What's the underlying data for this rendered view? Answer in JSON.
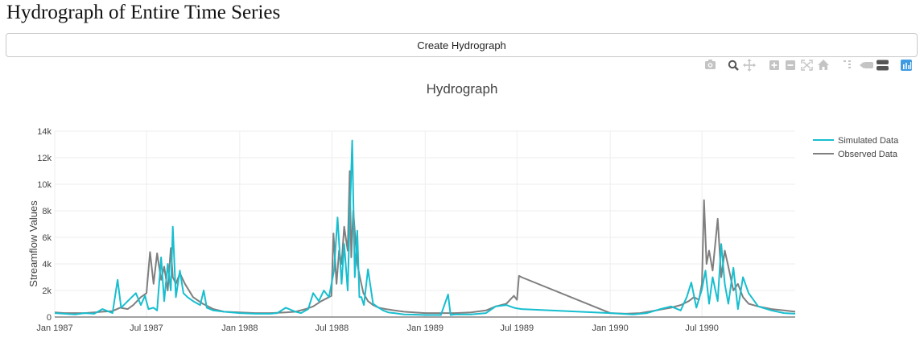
{
  "page": {
    "title": "Hydrograph of Entire Time Series",
    "create_button_label": "Create Hydrograph"
  },
  "modebar": {
    "icons": [
      "camera-icon",
      "zoom-icon",
      "pan-icon",
      "zoom-in-icon",
      "zoom-out-icon",
      "autoscale-icon",
      "reset-axes-icon",
      "spike-lines-icon",
      "hover-closest-icon",
      "hover-compare-icon",
      "plotly-logo-icon"
    ]
  },
  "colors": {
    "simulated": "#17becf",
    "observed": "#7f7f7f",
    "grid": "#eeeeee",
    "modebar_icon": "#c4c4c4",
    "plotly_logo": "#3f9be2"
  },
  "chart_data": {
    "type": "line",
    "title": "Hydrograph",
    "xlabel": "",
    "ylabel": "Streamflow Values",
    "x_range": [
      "1987-01-01",
      "1991-01-01"
    ],
    "ylim": [
      0,
      14000
    ],
    "y_ticks": [
      0,
      2000,
      4000,
      6000,
      8000,
      10000,
      12000,
      14000
    ],
    "y_tick_labels": [
      "0",
      "2k",
      "4k",
      "6k",
      "8k",
      "10k",
      "12k",
      "14k"
    ],
    "x_ticks": [
      "1987-01-01",
      "1987-07-01",
      "1988-01-01",
      "1988-07-01",
      "1989-01-01",
      "1989-07-01",
      "1990-01-01",
      "1990-07-01"
    ],
    "x_tick_labels": [
      "Jan 1987",
      "Jul 1987",
      "Jan 1988",
      "Jul 1988",
      "Jan 1989",
      "Jul 1989",
      "Jan 1990",
      "Jul 1990"
    ],
    "grid": true,
    "legend_position": "top-right",
    "series": [
      {
        "name": "Simulated Data",
        "x": [
          "1987-01-01",
          "1987-01-20",
          "1987-02-10",
          "1987-03-01",
          "1987-03-20",
          "1987-04-05",
          "1987-04-25",
          "1987-05-05",
          "1987-05-12",
          "1987-05-25",
          "1987-06-10",
          "1987-06-20",
          "1987-06-28",
          "1987-07-05",
          "1987-07-15",
          "1987-07-22",
          "1987-07-30",
          "1987-08-05",
          "1987-08-12",
          "1987-08-18",
          "1987-08-22",
          "1987-08-28",
          "1987-09-05",
          "1987-09-12",
          "1987-09-20",
          "1987-10-01",
          "1987-10-15",
          "1987-10-22",
          "1987-10-28",
          "1987-11-10",
          "1987-12-01",
          "1988-01-01",
          "1988-02-01",
          "1988-03-01",
          "1988-03-15",
          "1988-04-01",
          "1988-04-20",
          "1988-05-01",
          "1988-05-15",
          "1988-05-25",
          "1988-06-05",
          "1988-06-15",
          "1988-06-25",
          "1988-07-05",
          "1988-07-12",
          "1988-07-20",
          "1988-07-25",
          "1988-08-01",
          "1988-08-05",
          "1988-08-10",
          "1988-08-15",
          "1988-08-20",
          "1988-08-24",
          "1988-08-28",
          "1988-09-02",
          "1988-09-10",
          "1988-09-20",
          "1988-10-01",
          "1988-10-10",
          "1988-10-20",
          "1988-11-01",
          "1988-11-20",
          "1988-12-10",
          "1989-01-01",
          "1989-02-01",
          "1989-02-15",
          "1989-02-20",
          "1989-03-01",
          "1989-04-01",
          "1989-05-01",
          "1989-05-20",
          "1989-06-10",
          "1989-06-25",
          "1989-07-01",
          "1989-07-10",
          "1990-01-01",
          "1990-02-15",
          "1990-03-15",
          "1990-04-10",
          "1990-05-01",
          "1990-05-20",
          "1990-06-01",
          "1990-06-10",
          "1990-06-20",
          "1990-07-01",
          "1990-07-08",
          "1990-07-15",
          "1990-07-22",
          "1990-08-01",
          "1990-08-08",
          "1990-08-15",
          "1990-08-22",
          "1990-09-01",
          "1990-09-10",
          "1990-09-20",
          "1990-10-01",
          "1990-10-20",
          "1990-11-15",
          "1990-12-10",
          "1991-01-01"
        ],
        "values": [
          300,
          250,
          200,
          300,
          250,
          600,
          300,
          2800,
          700,
          1200,
          1800,
          900,
          1600,
          600,
          700,
          500,
          4500,
          1200,
          4000,
          2000,
          6800,
          1500,
          3500,
          1800,
          1500,
          1200,
          900,
          2000,
          700,
          500,
          400,
          300,
          250,
          250,
          300,
          700,
          400,
          300,
          600,
          1800,
          1200,
          2000,
          1500,
          3500,
          7500,
          2500,
          5500,
          2000,
          7300,
          13300,
          3000,
          6500,
          1500,
          1500,
          900,
          3600,
          1000,
          700,
          500,
          350,
          300,
          200,
          180,
          150,
          150,
          1700,
          150,
          200,
          200,
          300,
          800,
          900,
          700,
          650,
          600,
          300,
          200,
          300,
          600,
          800,
          500,
          1500,
          2600,
          700,
          2100,
          3500,
          1000,
          3000,
          1200,
          5500,
          2500,
          1000,
          3700,
          600,
          3000,
          1800,
          800,
          500,
          300,
          250
        ]
      },
      {
        "name": "Observed Data",
        "x": [
          "1987-01-01",
          "1987-01-20",
          "1987-02-10",
          "1987-03-01",
          "1987-03-20",
          "1987-04-05",
          "1987-04-25",
          "1987-05-10",
          "1987-05-25",
          "1987-06-05",
          "1987-06-20",
          "1987-07-01",
          "1987-07-08",
          "1987-07-15",
          "1987-07-22",
          "1987-07-30",
          "1987-08-05",
          "1987-08-12",
          "1987-08-18",
          "1987-08-22",
          "1987-08-28",
          "1987-09-05",
          "1987-09-15",
          "1987-10-01",
          "1987-10-20",
          "1987-11-10",
          "1987-12-01",
          "1988-01-01",
          "1988-02-01",
          "1988-03-01",
          "1988-04-01",
          "1988-04-20",
          "1988-05-10",
          "1988-05-25",
          "1988-06-10",
          "1988-06-25",
          "1988-06-30",
          "1988-07-04",
          "1988-07-10",
          "1988-07-15",
          "1988-07-20",
          "1988-07-25",
          "1988-08-01",
          "1988-08-05",
          "1988-08-08",
          "1988-08-12",
          "1988-08-16",
          "1988-08-20",
          "1988-08-25",
          "1988-09-01",
          "1988-09-10",
          "1988-09-20",
          "1988-10-01",
          "1988-10-15",
          "1988-11-01",
          "1988-11-20",
          "1988-12-10",
          "1989-01-01",
          "1989-02-01",
          "1989-03-01",
          "1989-04-01",
          "1989-05-01",
          "1989-05-20",
          "1989-06-10",
          "1989-06-25",
          "1989-07-01",
          "1989-07-05",
          "1989-07-10",
          "1990-01-01",
          "1990-02-01",
          "1990-03-01",
          "1990-04-01",
          "1990-05-01",
          "1990-05-20",
          "1990-06-05",
          "1990-06-15",
          "1990-06-25",
          "1990-07-01",
          "1990-07-05",
          "1990-07-10",
          "1990-07-15",
          "1990-07-22",
          "1990-08-01",
          "1990-08-08",
          "1990-08-15",
          "1990-08-22",
          "1990-09-01",
          "1990-09-10",
          "1990-09-20",
          "1990-10-01",
          "1990-10-20",
          "1990-11-15",
          "1990-12-10",
          "1991-01-01"
        ],
        "values": [
          350,
          300,
          300,
          300,
          350,
          400,
          450,
          700,
          600,
          900,
          1500,
          1800,
          4900,
          2500,
          4800,
          2800,
          3800,
          2000,
          5200,
          3000,
          2500,
          3300,
          2500,
          1500,
          1000,
          600,
          400,
          350,
          300,
          300,
          350,
          400,
          600,
          800,
          1200,
          1500,
          1600,
          6300,
          2500,
          5000,
          4000,
          6800,
          5000,
          11000,
          4500,
          8000,
          6000,
          4000,
          3000,
          1800,
          1200,
          900,
          700,
          600,
          500,
          400,
          350,
          300,
          300,
          300,
          350,
          500,
          800,
          1000,
          1600,
          1300,
          3100,
          3000,
          300,
          250,
          300,
          500,
          700,
          900,
          1200,
          1500,
          1300,
          2500,
          8800,
          4000,
          5000,
          3500,
          7400,
          3000,
          5000,
          3800,
          2000,
          2500,
          1500,
          1000,
          800,
          600,
          500,
          400
        ]
      }
    ]
  }
}
